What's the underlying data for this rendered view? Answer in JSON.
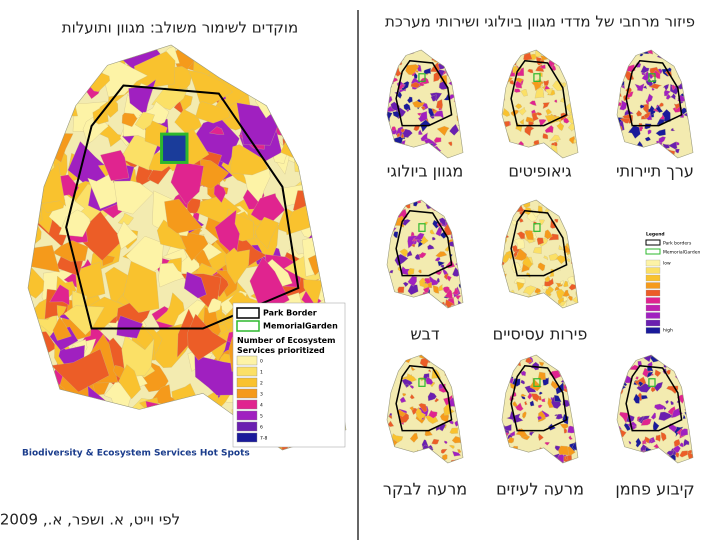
{
  "left_panel": {
    "title": "מוקדים לשימור משולב: מגוון ותועלות",
    "legend": {
      "border_items": [
        "Park Border",
        "MemorialGarden"
      ],
      "heading": "Number of Ecosystem Services prioritized",
      "classes": [
        "0",
        "1",
        "2",
        "3",
        "4",
        "5",
        "6",
        "7-8"
      ]
    },
    "caption": "Biodiversity & Ecosystem Services Hot Spots"
  },
  "right_panel": {
    "title": "פיזור מרחבי של מדדי מגוון ביולוגי ושירותי מערכת",
    "maps": [
      "ערך תיירותי",
      "גיאופיטים",
      "מגוון ביולוגי",
      "פירות עסיסיים",
      "דבש",
      "קיבוע פחמן",
      "מרעה לעיזים",
      "מרעה לבקר"
    ],
    "legend": {
      "heading": "Legend",
      "items": [
        "Park borders",
        "MemorialGarden",
        "low",
        "high"
      ]
    }
  },
  "credit": "לפי וייט, א. ושפר, א., 2009"
}
